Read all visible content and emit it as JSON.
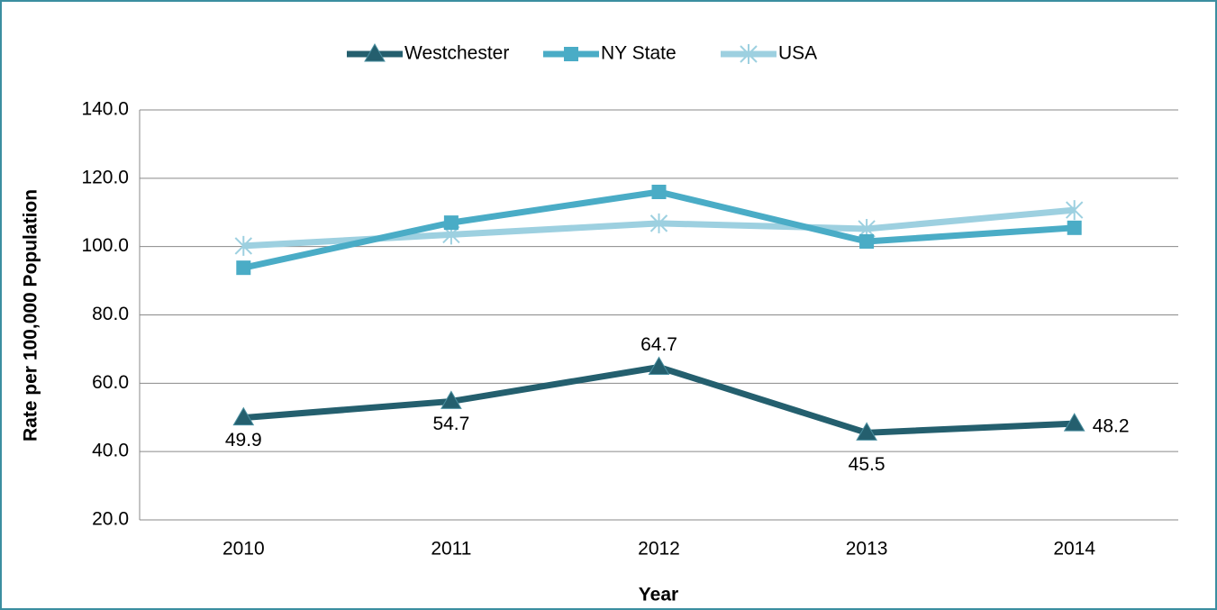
{
  "chart_data": {
    "type": "line",
    "y_label": "Rate per 100,000 Population",
    "x_label": "Year",
    "categories": [
      "2010",
      "2011",
      "2012",
      "2013",
      "2014"
    ],
    "series": [
      {
        "name": "Westchester",
        "color": "#245f6e",
        "marker": "triangle",
        "labels": true,
        "values": [
          49.9,
          54.7,
          64.7,
          45.5,
          48.2
        ]
      },
      {
        "name": "NY State",
        "color": "#4aacc6",
        "marker": "square",
        "values": [
          93.8,
          107.0,
          116.0,
          101.5,
          105.5
        ]
      },
      {
        "name": "USA",
        "color": "#9dd0e0",
        "marker": "asterisk",
        "values": [
          100.2,
          103.5,
          106.8,
          105.2,
          110.7
        ]
      }
    ],
    "ylim": [
      20,
      140
    ],
    "yticks": [
      {
        "value": 20,
        "label": "20.0"
      },
      {
        "value": 40,
        "label": "40.0"
      },
      {
        "value": 60,
        "label": "60.0"
      },
      {
        "value": 80,
        "label": "80.0"
      },
      {
        "value": 100,
        "label": "100.0"
      },
      {
        "value": 120,
        "label": "120.0"
      },
      {
        "value": 140,
        "label": "140.0"
      }
    ],
    "grid": true,
    "legend": "top"
  }
}
